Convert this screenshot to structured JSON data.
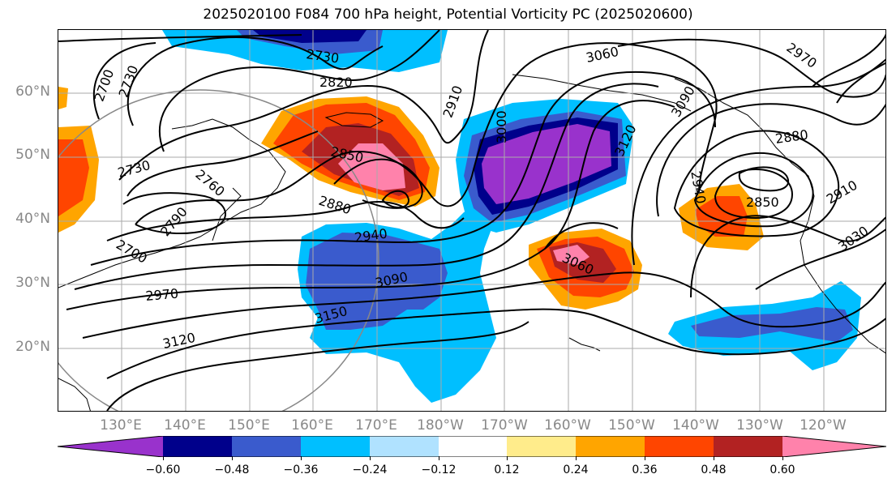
{
  "title": "2025020100 F084 700 hPa height, Potential Vorticity PC (2025020600)",
  "map": {
    "lat_labels": [
      "60°N",
      "50°N",
      "40°N",
      "30°N",
      "20°N"
    ],
    "lon_labels": [
      "130°E",
      "140°E",
      "150°E",
      "160°E",
      "170°E",
      "180°W",
      "170°W",
      "160°W",
      "150°W",
      "140°W",
      "130°W",
      "120°W"
    ],
    "contour_labels": [
      "2700",
      "2730",
      "2730",
      "2820",
      "2910",
      "3060",
      "2970",
      "3000",
      "3090",
      "3120",
      "2850",
      "2880",
      "2730",
      "2760",
      "2790",
      "2700",
      "2970",
      "3120",
      "2940",
      "3090",
      "3150",
      "3060",
      "2940",
      "2850",
      "2880",
      "2910",
      "3030"
    ]
  },
  "colorbar": {
    "colors": [
      "#9932cc",
      "#00008b",
      "#3a5bcd",
      "#00bfff",
      "#b0e2ff",
      "#ffffff",
      "#ffec8b",
      "#ffa500",
      "#ff4500",
      "#b22222",
      "#ff82ab"
    ],
    "ticks": [
      "−0.60",
      "−0.48",
      "−0.36",
      "−0.24",
      "−0.12",
      "0.12",
      "0.24",
      "0.36",
      "0.48",
      "0.60"
    ]
  }
}
